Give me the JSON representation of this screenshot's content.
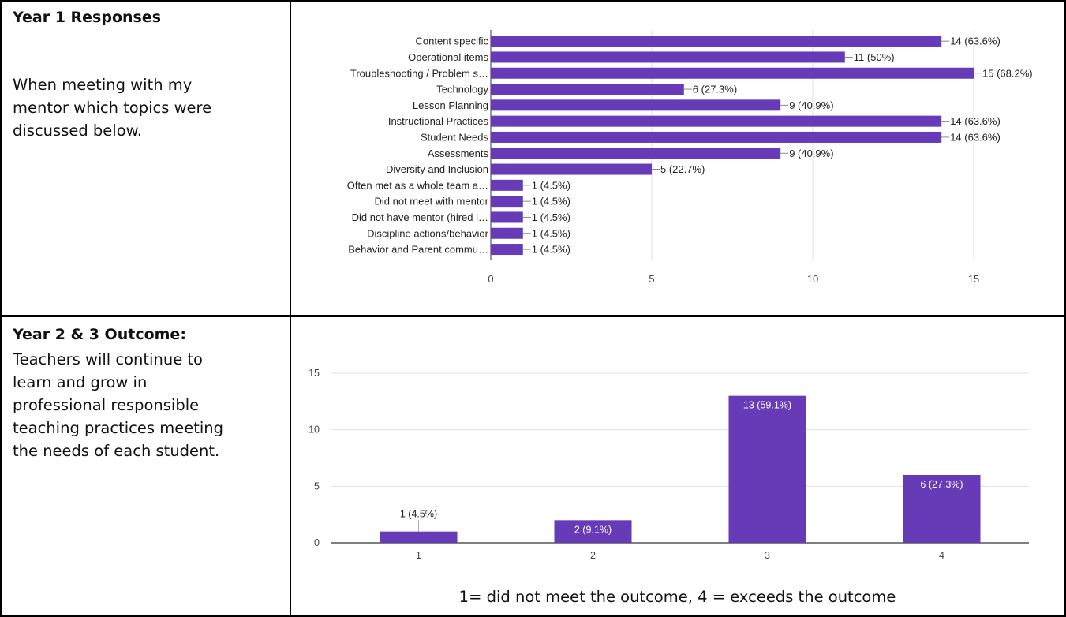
{
  "row1": {
    "heading": "Year 1 Responses",
    "description_lines": [
      "When meeting with my",
      "mentor which topics were",
      "discussed below."
    ]
  },
  "row2": {
    "heading": "Year 2 & 3 Outcome:",
    "description_lines": [
      "Teachers will continue to",
      "learn and grow in",
      "professional responsible",
      "teaching practices meeting",
      "the needs of each student."
    ],
    "caption": "1= did not meet the outcome, 4 = exceeds the outcome"
  },
  "colors": {
    "bar": "#673ab7",
    "grid": "#e0e0e0",
    "axis": "#333333"
  },
  "chart_data": [
    {
      "type": "bar",
      "orientation": "horizontal",
      "title": "",
      "xlabel": "",
      "ylabel": "",
      "xlim": [
        0,
        15
      ],
      "xticks": [
        0,
        5,
        10,
        15
      ],
      "grid": true,
      "categories": [
        "Content specific",
        "Operational items",
        "Troubleshooting / Problem s…",
        "Technology",
        "Lesson Planning",
        "Instructional Practices",
        "Student Needs",
        "Assessments",
        "Diversity and Inclusion",
        "Often met as a whole team a…",
        "Did not meet with mentor",
        "Did not have mentor (hired l…",
        "Discipline actions/behavior",
        "Behavior and Parent commu…"
      ],
      "values": [
        14,
        11,
        15,
        6,
        9,
        14,
        14,
        9,
        5,
        1,
        1,
        1,
        1,
        1
      ],
      "labels": [
        "14 (63.6%)",
        "11 (50%)",
        "15 (68.2%)",
        "6 (27.3%)",
        "9 (40.9%)",
        "14 (63.6%)",
        "14 (63.6%)",
        "9 (40.9%)",
        "5 (22.7%)",
        "1 (4.5%)",
        "1 (4.5%)",
        "1 (4.5%)",
        "1 (4.5%)",
        "1 (4.5%)"
      ]
    },
    {
      "type": "bar",
      "orientation": "vertical",
      "title": "",
      "xlabel": "",
      "ylabel": "",
      "ylim": [
        0,
        15
      ],
      "yticks": [
        0,
        5,
        10,
        15
      ],
      "grid": true,
      "categories": [
        "1",
        "2",
        "3",
        "4"
      ],
      "values": [
        1,
        2,
        13,
        6
      ],
      "labels": [
        "1 (4.5%)",
        "2 (9.1%)",
        "13 (59.1%)",
        "6 (27.3%)"
      ]
    }
  ]
}
